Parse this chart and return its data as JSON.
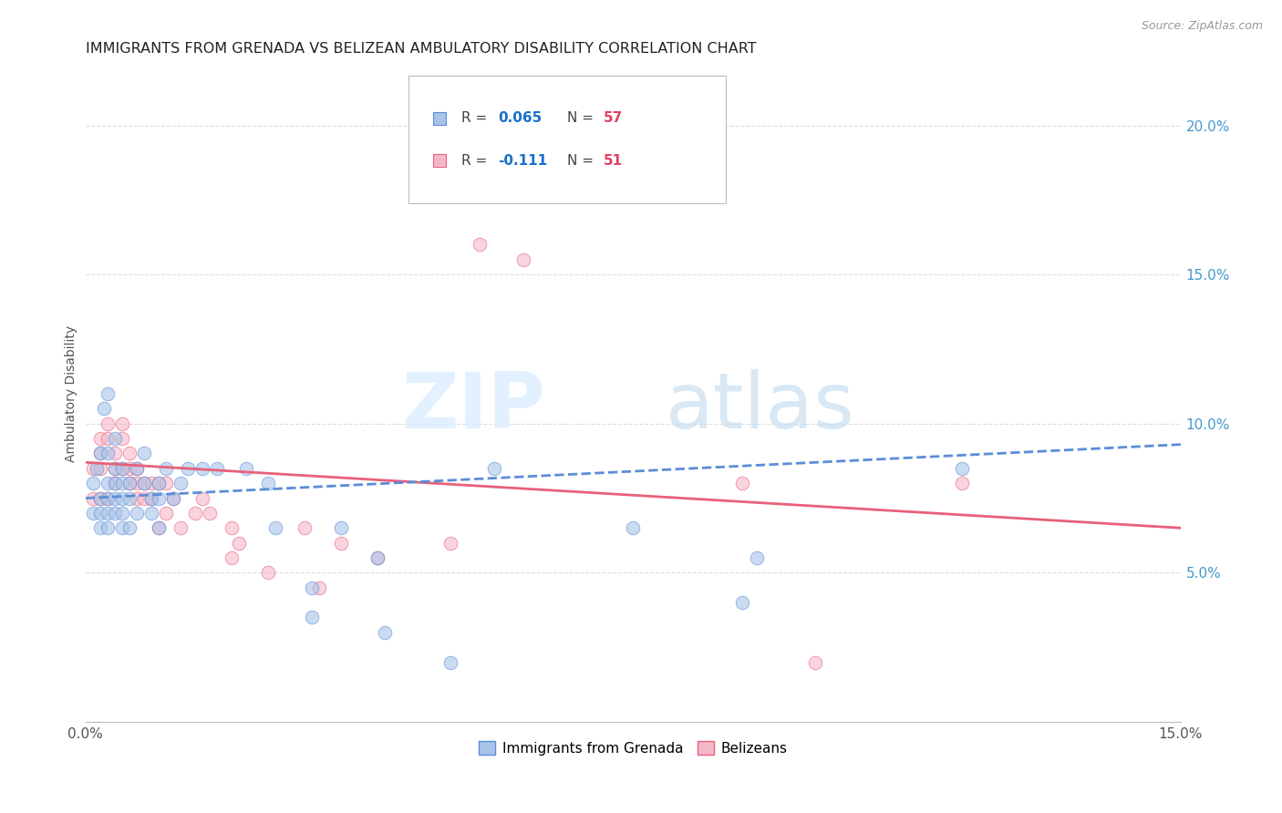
{
  "title": "IMMIGRANTS FROM GRENADA VS BELIZEAN AMBULATORY DISABILITY CORRELATION CHART",
  "source": "Source: ZipAtlas.com",
  "ylabel": "Ambulatory Disability",
  "xlim": [
    0.0,
    0.15
  ],
  "ylim": [
    0.0,
    0.22
  ],
  "blue_color": "#A8C4E8",
  "pink_color": "#F5B8C8",
  "trend_blue_color": "#5B8DD9",
  "trend_pink_color": "#E8607A",
  "legend_r_color": "#1A6FCC",
  "legend_n_color": "#E04060",
  "scatter_alpha": 0.6,
  "scatter_size": 110,
  "watermark_zip": "ZIP",
  "watermark_atlas": "atlas",
  "blue_x": [
    0.001,
    0.001,
    0.0015,
    0.002,
    0.002,
    0.002,
    0.002,
    0.0025,
    0.003,
    0.003,
    0.003,
    0.003,
    0.003,
    0.003,
    0.004,
    0.004,
    0.004,
    0.004,
    0.004,
    0.005,
    0.005,
    0.005,
    0.005,
    0.005,
    0.006,
    0.006,
    0.006,
    0.007,
    0.007,
    0.008,
    0.008,
    0.009,
    0.009,
    0.01,
    0.01,
    0.01,
    0.011,
    0.012,
    0.013,
    0.014,
    0.016,
    0.018,
    0.022,
    0.025,
    0.026,
    0.031,
    0.031,
    0.035,
    0.04,
    0.041,
    0.05,
    0.056,
    0.075,
    0.09,
    0.092,
    0.12
  ],
  "blue_y": [
    0.08,
    0.07,
    0.085,
    0.075,
    0.09,
    0.065,
    0.07,
    0.105,
    0.11,
    0.09,
    0.08,
    0.065,
    0.07,
    0.075,
    0.085,
    0.075,
    0.08,
    0.095,
    0.07,
    0.08,
    0.085,
    0.07,
    0.065,
    0.075,
    0.075,
    0.08,
    0.065,
    0.085,
    0.07,
    0.09,
    0.08,
    0.075,
    0.07,
    0.075,
    0.08,
    0.065,
    0.085,
    0.075,
    0.08,
    0.085,
    0.085,
    0.085,
    0.085,
    0.08,
    0.065,
    0.045,
    0.035,
    0.065,
    0.055,
    0.03,
    0.02,
    0.085,
    0.065,
    0.04,
    0.055,
    0.085
  ],
  "pink_x": [
    0.001,
    0.001,
    0.002,
    0.002,
    0.002,
    0.002,
    0.003,
    0.003,
    0.003,
    0.004,
    0.004,
    0.004,
    0.005,
    0.005,
    0.005,
    0.006,
    0.006,
    0.006,
    0.007,
    0.007,
    0.007,
    0.008,
    0.008,
    0.009,
    0.009,
    0.01,
    0.01,
    0.011,
    0.011,
    0.012,
    0.013,
    0.015,
    0.016,
    0.017,
    0.02,
    0.02,
    0.021,
    0.025,
    0.03,
    0.032,
    0.035,
    0.04,
    0.05,
    0.054,
    0.06,
    0.09,
    0.1,
    0.12
  ],
  "pink_y": [
    0.085,
    0.075,
    0.095,
    0.085,
    0.075,
    0.09,
    0.1,
    0.095,
    0.075,
    0.085,
    0.09,
    0.08,
    0.095,
    0.085,
    0.1,
    0.09,
    0.08,
    0.085,
    0.08,
    0.085,
    0.075,
    0.08,
    0.075,
    0.08,
    0.075,
    0.08,
    0.065,
    0.08,
    0.07,
    0.075,
    0.065,
    0.07,
    0.075,
    0.07,
    0.065,
    0.055,
    0.06,
    0.05,
    0.065,
    0.045,
    0.06,
    0.055,
    0.06,
    0.16,
    0.155,
    0.08,
    0.02,
    0.08
  ],
  "blue_trend_x": [
    0.0,
    0.15
  ],
  "blue_trend_y": [
    0.075,
    0.093
  ],
  "pink_trend_x": [
    0.0,
    0.15
  ],
  "pink_trend_y": [
    0.087,
    0.065
  ]
}
